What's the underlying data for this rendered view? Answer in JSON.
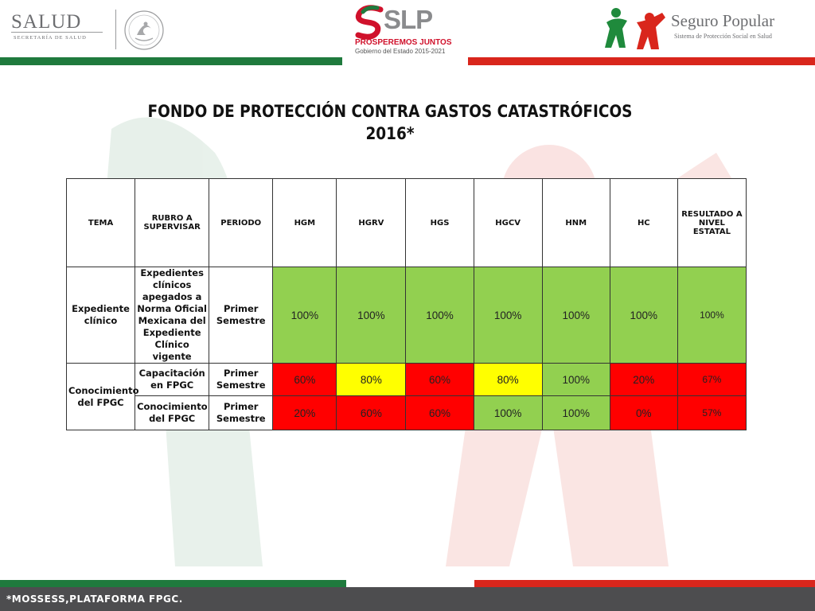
{
  "header": {
    "salud": {
      "title": "SALUD",
      "subtitle": "SECRETARÍA DE SALUD"
    },
    "slp": {
      "name": "SLP",
      "tagline": "PROSPEREMOS JUNTOS",
      "government": "Gobierno del Estado 2015-2021"
    },
    "seguro_popular": {
      "title": "Seguro Popular",
      "subtitle": "Sistema de Protección Social en Salud"
    }
  },
  "title": {
    "line1": "FONDO DE PROTECCIÓN CONTRA GASTOS CATASTRÓFICOS",
    "line2": "2016*"
  },
  "colors": {
    "green": "#92d050",
    "yellow": "#ffff00",
    "red": "#ff0000",
    "bar_green": "#1f7a3d",
    "bar_red": "#d9261c",
    "footer": "#4d4d4f"
  },
  "table": {
    "headers": [
      "TEMA",
      "RUBRO A SUPERVISAR",
      "PERIODO",
      "HGM",
      "HGRV",
      "HGS",
      "HGCV",
      "HNM",
      "HC",
      "RESULTADO A NIVEL ESTATAL"
    ],
    "rows": [
      {
        "tema": "Expediente clínico",
        "rubro": "Expedientes clínicos apegados a Norma Oficial Mexicana del Expediente Clínico vigente",
        "periodo": "Primer Semestre",
        "values": [
          "100%",
          "100%",
          "100%",
          "100%",
          "100%",
          "100%",
          "100%"
        ],
        "colors": [
          "green",
          "green",
          "green",
          "green",
          "green",
          "green",
          "green"
        ]
      },
      {
        "tema": "Conocimiento del FPGC",
        "rubro": "Capacitación en FPGC",
        "periodo": "Primer Semestre",
        "values": [
          "60%",
          "80%",
          "60%",
          "80%",
          "100%",
          "20%",
          "67%"
        ],
        "colors": [
          "red",
          "yellow",
          "red",
          "yellow",
          "green",
          "red",
          "red"
        ]
      },
      {
        "rubro": "Conocimiento del FPGC",
        "periodo": "Primer Semestre",
        "values": [
          "20%",
          "60%",
          "60%",
          "100%",
          "100%",
          "0%",
          "57%"
        ],
        "colors": [
          "red",
          "red",
          "red",
          "green",
          "green",
          "red",
          "red"
        ]
      }
    ]
  },
  "footer": {
    "note": "*MOSSESS,PLATAFORMA FPGC."
  }
}
